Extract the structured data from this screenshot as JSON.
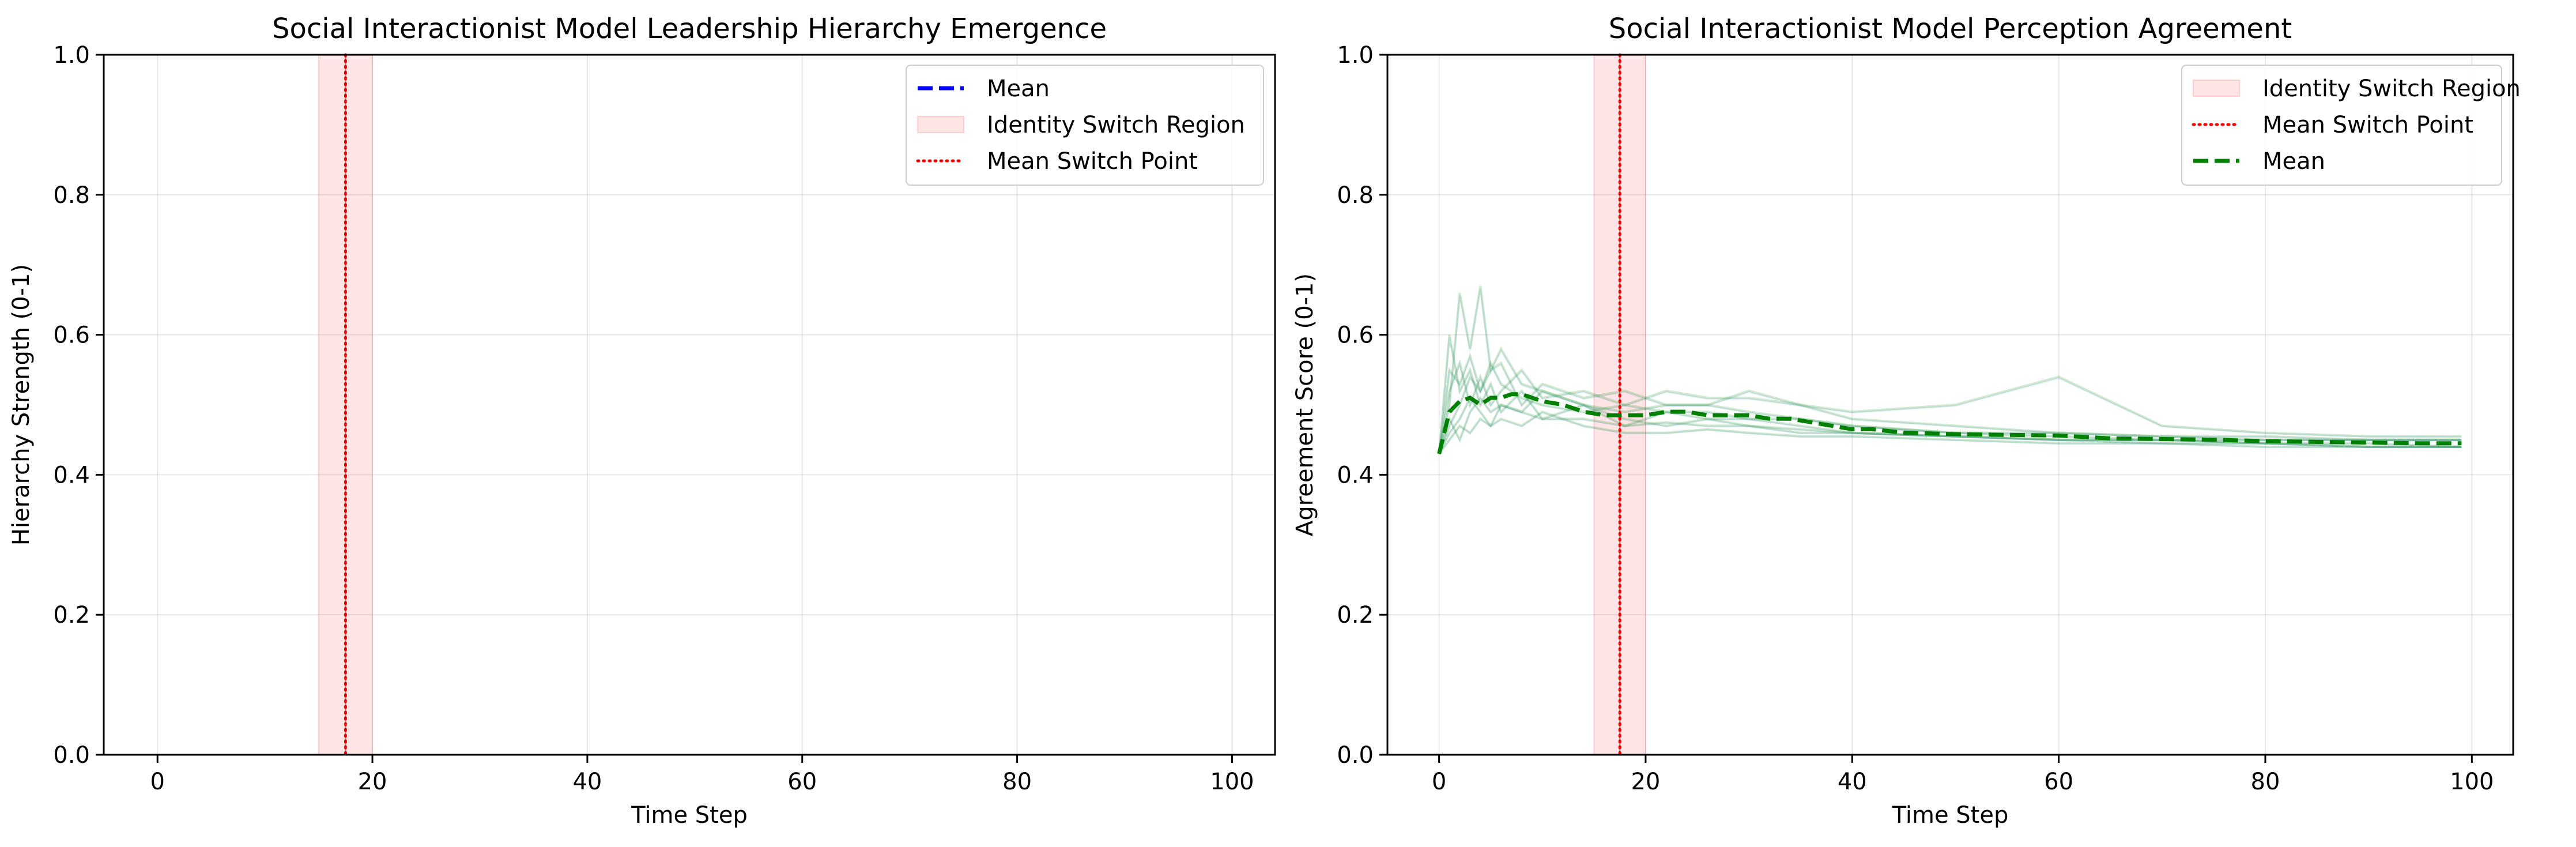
{
  "chart_data": [
    {
      "type": "line",
      "title": "Social Interactionist Model Leadership Hierarchy Emergence",
      "xlabel": "Time Step",
      "ylabel": "Hierarchy Strength (0-1)",
      "xlim": [
        -5,
        104
      ],
      "ylim": [
        0.0,
        1.0
      ],
      "xticks": [
        "0",
        "20",
        "40",
        "60",
        "80",
        "100"
      ],
      "yticks": [
        "0.0",
        "0.2",
        "0.4",
        "0.6",
        "0.8",
        "1.0"
      ],
      "grid": true,
      "legend_position": "top-right",
      "legend": [
        {
          "label": "Mean",
          "kind": "dashed-line",
          "color": "#0000ff"
        },
        {
          "label": "Identity Switch Region",
          "kind": "patch",
          "color": "#ff0000"
        },
        {
          "label": "Mean Switch Point",
          "kind": "dotted-line",
          "color": "#ff0000"
        }
      ],
      "switch_region": [
        15,
        20
      ],
      "switch_point": 17.5,
      "series": []
    },
    {
      "type": "line",
      "title": "Social Interactionist Model Perception Agreement",
      "xlabel": "Time Step",
      "ylabel": "Agreement Score (0-1)",
      "xlim": [
        -5,
        104
      ],
      "ylim": [
        0.0,
        1.0
      ],
      "xticks": [
        "0",
        "20",
        "40",
        "60",
        "80",
        "100"
      ],
      "yticks": [
        "0.0",
        "0.2",
        "0.4",
        "0.6",
        "0.8",
        "1.0"
      ],
      "grid": true,
      "legend_position": "top-right",
      "legend": [
        {
          "label": "Identity Switch Region",
          "kind": "patch",
          "color": "#ff0000"
        },
        {
          "label": "Mean Switch Point",
          "kind": "dotted-line",
          "color": "#ff0000"
        },
        {
          "label": "Mean",
          "kind": "dashed-line",
          "color": "#008000"
        }
      ],
      "switch_region": [
        15,
        20
      ],
      "switch_point": 17.5,
      "mean_series": {
        "color": "#008000",
        "x": [
          0,
          1,
          2,
          3,
          4,
          5,
          6,
          7,
          8,
          9,
          10,
          12,
          14,
          16,
          18,
          20,
          22,
          24,
          26,
          28,
          30,
          32,
          34,
          36,
          38,
          40,
          42,
          45,
          50,
          55,
          60,
          65,
          70,
          75,
          80,
          85,
          90,
          95,
          99
        ],
        "y": [
          0.43,
          0.49,
          0.505,
          0.51,
          0.5,
          0.51,
          0.51,
          0.515,
          0.515,
          0.51,
          0.505,
          0.5,
          0.49,
          0.485,
          0.485,
          0.485,
          0.49,
          0.49,
          0.485,
          0.485,
          0.485,
          0.48,
          0.48,
          0.475,
          0.47,
          0.465,
          0.465,
          0.46,
          0.458,
          0.457,
          0.456,
          0.452,
          0.451,
          0.45,
          0.448,
          0.447,
          0.446,
          0.445,
          0.445
        ]
      },
      "individual_runs": {
        "color_green": "#2ca02c",
        "color_blue": "#1f77b4",
        "runs": [
          {
            "x": [
              0,
              1,
              2,
              3,
              4,
              5,
              6,
              8,
              10,
              14,
              18,
              22,
              26,
              30,
              35,
              40,
              50,
              60,
              70,
              80,
              90,
              99
            ],
            "y": [
              0.43,
              0.6,
              0.52,
              0.55,
              0.5,
              0.53,
              0.49,
              0.52,
              0.48,
              0.5,
              0.47,
              0.49,
              0.48,
              0.48,
              0.47,
              0.46,
              0.455,
              0.45,
              0.45,
              0.445,
              0.445,
              0.44
            ]
          },
          {
            "x": [
              0,
              1,
              2,
              3,
              4,
              5,
              6,
              8,
              10,
              14,
              18,
              22,
              26,
              30,
              35,
              40,
              50,
              60,
              70,
              80,
              90,
              99
            ],
            "y": [
              0.43,
              0.5,
              0.66,
              0.58,
              0.67,
              0.55,
              0.58,
              0.53,
              0.52,
              0.5,
              0.49,
              0.5,
              0.5,
              0.49,
              0.48,
              0.47,
              0.46,
              0.455,
              0.45,
              0.45,
              0.45,
              0.45
            ]
          },
          {
            "x": [
              0,
              1,
              2,
              3,
              4,
              5,
              6,
              8,
              10,
              14,
              18,
              22,
              26,
              30,
              35,
              40,
              50,
              60,
              70,
              80,
              90,
              99
            ],
            "y": [
              0.43,
              0.47,
              0.5,
              0.54,
              0.52,
              0.56,
              0.53,
              0.51,
              0.5,
              0.49,
              0.5,
              0.52,
              0.51,
              0.51,
              0.5,
              0.49,
              0.5,
              0.54,
              0.47,
              0.46,
              0.455,
              0.455
            ]
          },
          {
            "x": [
              0,
              1,
              2,
              3,
              4,
              5,
              6,
              8,
              10,
              14,
              18,
              22,
              26,
              30,
              35,
              40,
              50,
              60,
              70,
              80,
              90,
              99
            ],
            "y": [
              0.43,
              0.45,
              0.47,
              0.46,
              0.48,
              0.47,
              0.5,
              0.49,
              0.52,
              0.5,
              0.48,
              0.47,
              0.48,
              0.47,
              0.465,
              0.46,
              0.455,
              0.45,
              0.45,
              0.445,
              0.44,
              0.44
            ]
          },
          {
            "x": [
              0,
              1,
              2,
              3,
              4,
              5,
              6,
              8,
              10,
              14,
              18,
              22,
              26,
              30,
              35,
              40,
              50,
              60,
              70,
              80,
              90,
              99
            ],
            "y": [
              0.43,
              0.52,
              0.56,
              0.5,
              0.54,
              0.5,
              0.52,
              0.55,
              0.51,
              0.52,
              0.5,
              0.49,
              0.49,
              0.48,
              0.48,
              0.47,
              0.46,
              0.46,
              0.455,
              0.45,
              0.45,
              0.45
            ]
          },
          {
            "x": [
              0,
              1,
              2,
              3,
              4,
              5,
              6,
              8,
              10,
              14,
              18,
              22,
              26,
              30,
              35,
              40,
              50,
              60,
              70,
              80,
              90,
              99
            ],
            "y": [
              0.43,
              0.46,
              0.48,
              0.51,
              0.49,
              0.47,
              0.48,
              0.47,
              0.49,
              0.47,
              0.46,
              0.46,
              0.465,
              0.46,
              0.455,
              0.455,
              0.45,
              0.445,
              0.445,
              0.44,
              0.44,
              0.44
            ]
          },
          {
            "x": [
              0,
              1,
              2,
              3,
              4,
              5,
              6,
              8,
              10,
              14,
              18,
              22,
              26,
              30,
              35,
              40,
              50,
              60,
              70,
              80,
              90,
              99
            ],
            "y": [
              0.43,
              0.55,
              0.53,
              0.57,
              0.52,
              0.55,
              0.56,
              0.5,
              0.53,
              0.51,
              0.52,
              0.5,
              0.5,
              0.52,
              0.5,
              0.48,
              0.47,
              0.46,
              0.455,
              0.455,
              0.45,
              0.45
            ]
          },
          {
            "x": [
              0,
              1,
              2,
              3,
              4,
              5,
              6,
              8,
              10,
              14,
              18,
              22,
              26,
              30,
              35,
              40,
              50,
              60,
              70,
              80,
              90,
              99
            ],
            "y": [
              0.43,
              0.48,
              0.45,
              0.49,
              0.51,
              0.49,
              0.5,
              0.49,
              0.48,
              0.48,
              0.47,
              0.475,
              0.47,
              0.47,
              0.46,
              0.46,
              0.455,
              0.45,
              0.445,
              0.445,
              0.44,
              0.44
            ]
          }
        ]
      }
    }
  ]
}
